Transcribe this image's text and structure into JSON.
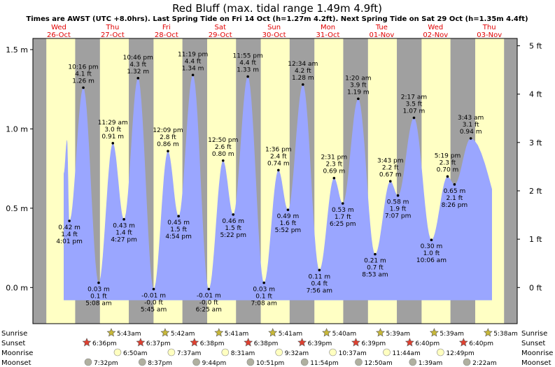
{
  "header": {
    "title": "Red Bluff (max. tidal range 1.49m 4.9ft)",
    "subtitle": "Times are AWST (UTC +8.0hrs). Last Spring Tide on Fri 14 Oct (h=1.27m 4.2ft). Next Spring Tide on Sat 29 Oct (h=1.35m 4.4ft)"
  },
  "days": [
    {
      "name": "Wed",
      "date": "26-Oct"
    },
    {
      "name": "Thu",
      "date": "27-Oct"
    },
    {
      "name": "Fri",
      "date": "28-Oct"
    },
    {
      "name": "Sat",
      "date": "29-Oct"
    },
    {
      "name": "Sun",
      "date": "30-Oct"
    },
    {
      "name": "Mon",
      "date": "31-Oct"
    },
    {
      "name": "Tue",
      "date": "01-Nov"
    },
    {
      "name": "Wed",
      "date": "02-Nov"
    },
    {
      "name": "Thu",
      "date": "03-Nov"
    }
  ],
  "chart_data": {
    "type": "area",
    "title": "Red Bluff (max. tidal range 1.49m 4.9ft)",
    "y_left_ticks": [
      "1.5 m",
      "1.0 m",
      "0.5 m",
      "0.0 m"
    ],
    "y_right_ticks": [
      "5 ft",
      "4 ft",
      "3 ft",
      "2 ft",
      "1 ft",
      "0 ft"
    ],
    "ylim_m": [
      -0.3,
      1.57
    ],
    "x_range_hours": [
      0,
      216
    ],
    "colors": {
      "water": "#9aa6ff",
      "day": "#ffffc4",
      "night": "#a0a0a0",
      "day_label": "#e00000"
    },
    "tides": [
      {
        "time": "4:01 pm",
        "height_m": 0.42,
        "height_ft": "1.4 ft",
        "m_label": "0.42 m"
      },
      {
        "time": "10:16 pm",
        "height_m": 1.26,
        "height_ft": "4.1 ft",
        "m_label": "1.26 m"
      },
      {
        "time": "5:08 am",
        "height_m": 0.03,
        "height_ft": "0.1 ft",
        "m_label": "0.03 m"
      },
      {
        "time": "11:29 am",
        "height_m": 0.91,
        "height_ft": "3.0 ft",
        "m_label": "0.91 m"
      },
      {
        "time": "4:27 pm",
        "height_m": 0.43,
        "height_ft": "1.4 ft",
        "m_label": "0.43 m"
      },
      {
        "time": "10:46 pm",
        "height_m": 1.32,
        "height_ft": "4.3 ft",
        "m_label": "1.32 m"
      },
      {
        "time": "5:45 am",
        "height_m": -0.01,
        "height_ft": "-0.0 ft",
        "m_label": "-0.01 m"
      },
      {
        "time": "12:09 pm",
        "height_m": 0.86,
        "height_ft": "2.8 ft",
        "m_label": "0.86 m"
      },
      {
        "time": "4:54 pm",
        "height_m": 0.45,
        "height_ft": "1.5 ft",
        "m_label": "0.45 m"
      },
      {
        "time": "11:19 pm",
        "height_m": 1.34,
        "height_ft": "4.4 ft",
        "m_label": "1.34 m"
      },
      {
        "time": "6:25 am",
        "height_m": -0.01,
        "height_ft": "-0.0 ft",
        "m_label": "-0.01 m"
      },
      {
        "time": "12:50 pm",
        "height_m": 0.8,
        "height_ft": "2.6 ft",
        "m_label": "0.80 m"
      },
      {
        "time": "5:22 pm",
        "height_m": 0.46,
        "height_ft": "1.5 ft",
        "m_label": "0.46 m"
      },
      {
        "time": "11:55 pm",
        "height_m": 1.33,
        "height_ft": "4.4 ft",
        "m_label": "1.33 m"
      },
      {
        "time": "7:08 am",
        "height_m": 0.03,
        "height_ft": "0.1 ft",
        "m_label": "0.03 m"
      },
      {
        "time": "1:36 pm",
        "height_m": 0.74,
        "height_ft": "2.4 ft",
        "m_label": "0.74 m"
      },
      {
        "time": "5:52 pm",
        "height_m": 0.49,
        "height_ft": "1.6 ft",
        "m_label": "0.49 m"
      },
      {
        "time": "12:34 am",
        "height_m": 1.28,
        "height_ft": "4.2 ft",
        "m_label": "1.28 m"
      },
      {
        "time": "7:56 am",
        "height_m": 0.11,
        "height_ft": "0.4 ft",
        "m_label": "0.11 m"
      },
      {
        "time": "2:31 pm",
        "height_m": 0.69,
        "height_ft": "2.3 ft",
        "m_label": "0.69 m"
      },
      {
        "time": "6:25 pm",
        "height_m": 0.53,
        "height_ft": "1.7 ft",
        "m_label": "0.53 m"
      },
      {
        "time": "1:20 am",
        "height_m": 1.19,
        "height_ft": "3.9 ft",
        "m_label": "1.19 m"
      },
      {
        "time": "8:53 am",
        "height_m": 0.21,
        "height_ft": "0.7 ft",
        "m_label": "0.21 m"
      },
      {
        "time": "3:43 pm",
        "height_m": 0.67,
        "height_ft": "2.2 ft",
        "m_label": "0.67 m"
      },
      {
        "time": "7:07 pm",
        "height_m": 0.58,
        "height_ft": "1.9 ft",
        "m_label": "0.58 m"
      },
      {
        "time": "2:17 am",
        "height_m": 1.07,
        "height_ft": "3.5 ft",
        "m_label": "1.07 m"
      },
      {
        "time": "10:06 am",
        "height_m": 0.3,
        "height_ft": "1.0 ft",
        "m_label": "0.30 m"
      },
      {
        "time": "5:19 pm",
        "height_m": 0.7,
        "height_ft": "2.3 ft",
        "m_label": "0.70 m"
      },
      {
        "time": "8:26 pm",
        "height_m": 0.65,
        "height_ft": "2.1 ft",
        "m_label": "0.65 m"
      },
      {
        "time": "3:43 am",
        "height_m": 0.94,
        "height_ft": "3.1 ft",
        "m_label": "0.94 m"
      }
    ],
    "astro": {
      "row_labels": [
        "Sunrise",
        "Sunset",
        "Moonrise",
        "Moonset"
      ],
      "sunrise": [
        "5:43am",
        "5:42am",
        "5:41am",
        "5:41am",
        "5:40am",
        "5:39am",
        "5:39am",
        "5:38am"
      ],
      "sunset": [
        "6:36pm",
        "6:37pm",
        "6:38pm",
        "6:38pm",
        "6:39pm",
        "6:39pm",
        "6:40pm",
        "6:40pm"
      ],
      "moonrise": [
        "6:50am",
        "7:37am",
        "8:31am",
        "9:32am",
        "10:37am",
        "11:44am",
        "12:49pm"
      ],
      "moonset": [
        "7:32pm",
        "8:37pm",
        "9:44pm",
        "10:51pm",
        "11:54pm",
        "12:50am",
        "1:39am",
        "2:22am"
      ]
    }
  }
}
